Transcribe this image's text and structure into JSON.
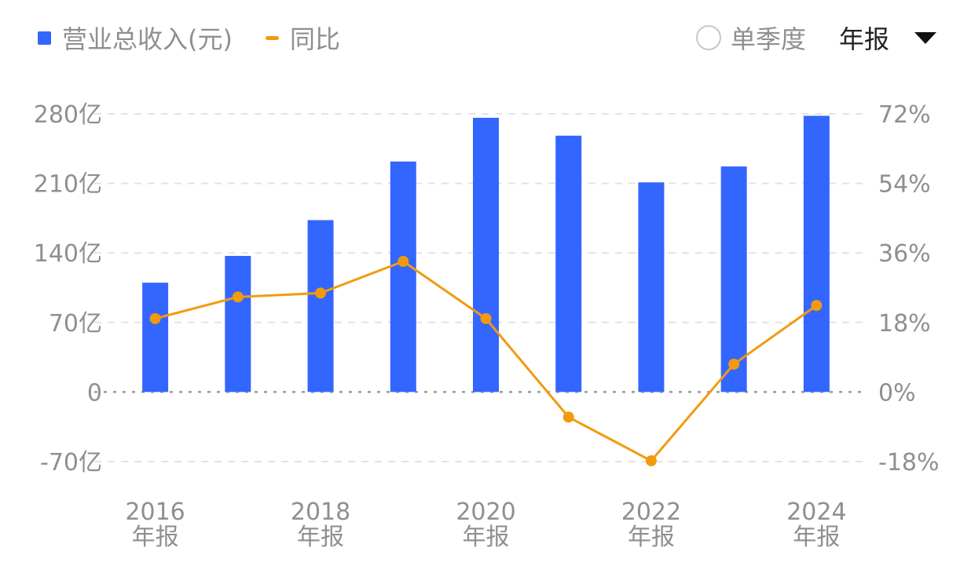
{
  "legend": {
    "bar_label": "营业总收入(元)",
    "line_label": "同比"
  },
  "controls": {
    "single_quarter_label": "单季度",
    "selected_period": "年报"
  },
  "colors": {
    "bar": "#3366ff",
    "line": "#f29a0f",
    "grid": "#e3e3e3",
    "zero_line": "#9a9a9a",
    "text": "#8f8f8f"
  },
  "chart_data": {
    "type": "bar",
    "categories": [
      "2016年报",
      "2017年报",
      "2018年报",
      "2019年报",
      "2020年报",
      "2021年报",
      "2022年报",
      "2023年报",
      "2024年报"
    ],
    "x_tick_labels": [
      {
        "year": "2016",
        "period": "年报",
        "index": 0
      },
      {
        "year": "2018",
        "period": "年报",
        "index": 2
      },
      {
        "year": "2020",
        "period": "年报",
        "index": 4
      },
      {
        "year": "2022",
        "period": "年报",
        "index": 6
      },
      {
        "year": "2024",
        "period": "年报",
        "index": 8
      }
    ],
    "series": [
      {
        "name": "营业总收入(元)",
        "type": "bar",
        "axis": "left",
        "unit": "亿",
        "values": [
          110,
          137,
          173,
          232,
          276,
          258,
          211,
          227,
          278
        ]
      },
      {
        "name": "同比",
        "type": "line",
        "axis": "right",
        "unit": "%",
        "values": [
          19.0,
          24.6,
          25.6,
          33.8,
          19.0,
          -6.5,
          -17.8,
          7.2,
          22.4
        ]
      }
    ],
    "y_left": {
      "ticks": [
        -70,
        0,
        70,
        140,
        210,
        280
      ],
      "tick_labels": [
        "-70亿",
        "0",
        "70亿",
        "140亿",
        "210亿",
        "280亿"
      ],
      "range": [
        -70,
        280
      ]
    },
    "y_right": {
      "ticks": [
        -18,
        0,
        18,
        36,
        54,
        72
      ],
      "tick_labels": [
        "-18%",
        "0%",
        "18%",
        "36%",
        "54%",
        "72%"
      ],
      "range": [
        -18,
        72
      ]
    },
    "grid": true,
    "legend_position": "top-left"
  }
}
